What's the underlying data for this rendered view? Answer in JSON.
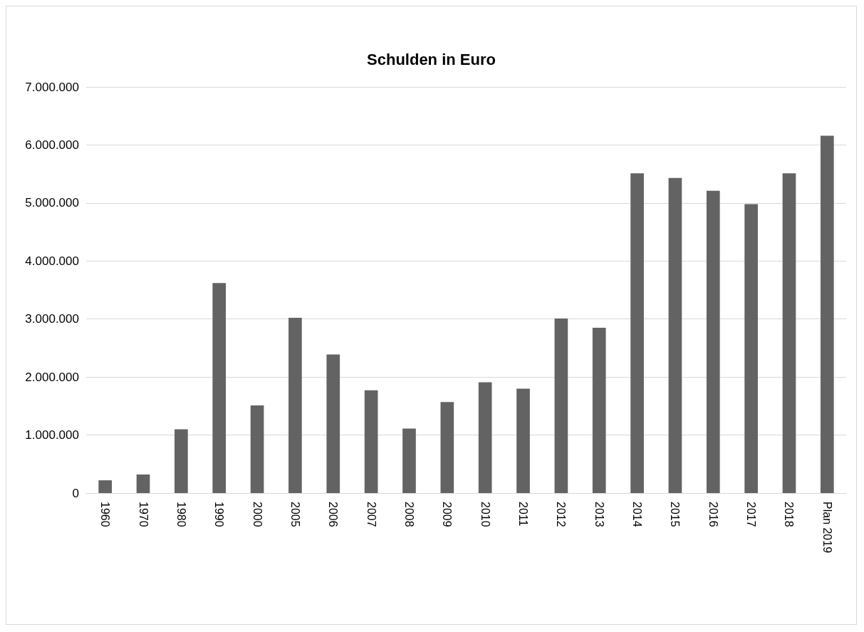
{
  "chart_data": {
    "type": "bar",
    "title": "Schulden in Euro",
    "categories": [
      "1960",
      "1970",
      "1980",
      "1990",
      "2000",
      "2005",
      "2006",
      "2007",
      "2008",
      "2009",
      "2010",
      "2011",
      "2012",
      "2013",
      "2014",
      "2015",
      "2016",
      "2017",
      "2018",
      "Plan 2019"
    ],
    "values": [
      220000,
      320000,
      1100000,
      3620000,
      1510000,
      3020000,
      2390000,
      1770000,
      1110000,
      1570000,
      1910000,
      1800000,
      3010000,
      2850000,
      5510000,
      5430000,
      5210000,
      4980000,
      5510000,
      6160000
    ],
    "color": "#636363",
    "ylim": [
      0,
      7000000
    ],
    "yticks": [
      {
        "value": 0,
        "label": "0"
      },
      {
        "value": 1000000,
        "label": "1.000.000"
      },
      {
        "value": 2000000,
        "label": "2.000.000"
      },
      {
        "value": 3000000,
        "label": "3.000.000"
      },
      {
        "value": 4000000,
        "label": "4.000.000"
      },
      {
        "value": 5000000,
        "label": "5.000.000"
      },
      {
        "value": 6000000,
        "label": "6.000.000"
      },
      {
        "value": 7000000,
        "label": "7.000.000"
      }
    ],
    "grid": "y"
  }
}
